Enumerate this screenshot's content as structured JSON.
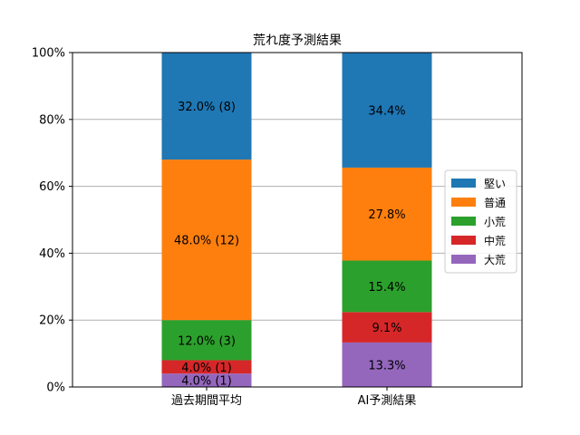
{
  "chart_data": {
    "type": "bar",
    "stacked": true,
    "title": "荒れ度予測結果",
    "xlabel": "",
    "ylabel": "",
    "ylim": [
      0,
      100
    ],
    "yticks": [
      "0%",
      "20%",
      "40%",
      "60%",
      "80%",
      "100%"
    ],
    "grid": true,
    "legend_position": "right",
    "categories": [
      "過去期間平均",
      "AI予測結果"
    ],
    "series": [
      {
        "name": "大荒",
        "color": "#9467bd",
        "values": [
          4.0,
          13.3
        ],
        "labels": [
          "4.0% (1)",
          "13.3%"
        ]
      },
      {
        "name": "中荒",
        "color": "#d62728",
        "values": [
          4.0,
          9.1
        ],
        "labels": [
          "4.0% (1)",
          "9.1%"
        ]
      },
      {
        "name": "小荒",
        "color": "#2ca02c",
        "values": [
          12.0,
          15.4
        ],
        "labels": [
          "12.0% (3)",
          "15.4%"
        ]
      },
      {
        "name": "普通",
        "color": "#ff7f0e",
        "values": [
          48.0,
          27.8
        ],
        "labels": [
          "48.0% (12)",
          "27.8%"
        ]
      },
      {
        "name": "堅い",
        "color": "#1f77b4",
        "values": [
          32.0,
          34.4
        ],
        "labels": [
          "32.0% (8)",
          "34.4%"
        ]
      }
    ],
    "legend_order": [
      "堅い",
      "普通",
      "小荒",
      "中荒",
      "大荒"
    ]
  }
}
